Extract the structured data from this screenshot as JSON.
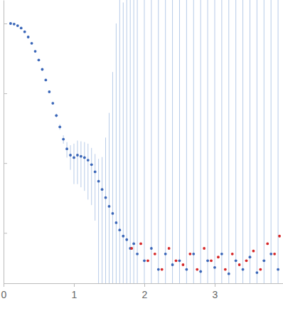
{
  "chart_data": {
    "type": "scatter",
    "log": "y",
    "tick_labels": "x",
    "xlim": [
      0,
      3.97
    ],
    "xticks": [
      0,
      1,
      2,
      3
    ],
    "ylim": [
      0.00019,
      2.17
    ],
    "yticks": [
      0.001,
      0.01,
      0.1,
      1
    ],
    "series": [
      {
        "color": "#3a66b8",
        "marker": "circle",
        "x": [
          0.1,
          0.15,
          0.2,
          0.25,
          0.3,
          0.35,
          0.4,
          0.45,
          0.5,
          0.55,
          0.6,
          0.65,
          0.7,
          0.75,
          0.8,
          0.85,
          0.9,
          0.95,
          1.0,
          1.05,
          1.1,
          1.15,
          1.2,
          1.25,
          1.3,
          1.35,
          1.4,
          1.45,
          1.5,
          1.55,
          1.6,
          1.65,
          1.7,
          1.75,
          1.8,
          1.85,
          1.9,
          2.0,
          2.1,
          2.2,
          2.3,
          2.4,
          2.5,
          2.6,
          2.7,
          2.8,
          2.9,
          3.0,
          3.1,
          3.2,
          3.3,
          3.4,
          3.5,
          3.6,
          3.7,
          3.8,
          3.9
        ],
        "values": [
          1.0,
          0.98,
          0.93,
          0.86,
          0.76,
          0.64,
          0.52,
          0.4,
          0.3,
          0.22,
          0.155,
          0.105,
          0.072,
          0.048,
          0.033,
          0.022,
          0.016,
          0.013,
          0.012,
          0.013,
          0.0125,
          0.012,
          0.011,
          0.0095,
          0.0075,
          0.0055,
          0.0042,
          0.0032,
          0.0024,
          0.0019,
          0.0014,
          0.0011,
          0.0009,
          0.0008,
          0.0006,
          0.0007,
          0.0005,
          0.0004,
          0.0006,
          0.0003,
          0.0005,
          0.00035,
          0.0004,
          0.0003,
          0.0005,
          0.00028,
          0.0004,
          0.00032,
          0.0005,
          0.00026,
          0.0004,
          0.0003,
          0.00045,
          0.00027,
          0.0004,
          0.0005,
          0.0003
        ],
        "errors": [
          0.005,
          0.005,
          0.005,
          0.005,
          0.005,
          0.005,
          0.004,
          0.004,
          0.004,
          0.004,
          0.003,
          0.003,
          0.003,
          0.003,
          0.003,
          0.003,
          0.004,
          0.005,
          0.007,
          0.008,
          0.008,
          0.008,
          0.008,
          0.007,
          0.006,
          0.006,
          0.008,
          0.02,
          0.05,
          0.2,
          1,
          3,
          2,
          5,
          8,
          3,
          10,
          6,
          9,
          4,
          12,
          7,
          10,
          5,
          8,
          11,
          6,
          9,
          7,
          10,
          4,
          8,
          12,
          6,
          9,
          11,
          7
        ]
      },
      {
        "color": "#d62728",
        "marker": "circle",
        "x": [
          1.82,
          1.95,
          2.05,
          2.15,
          2.25,
          2.35,
          2.45,
          2.55,
          2.65,
          2.75,
          2.85,
          2.95,
          3.05,
          3.15,
          3.25,
          3.35,
          3.45,
          3.55,
          3.65,
          3.75,
          3.85,
          3.92
        ],
        "values": [
          0.0006,
          0.0007,
          0.0004,
          0.0005,
          0.0003,
          0.0006,
          0.0004,
          0.00035,
          0.0005,
          0.0003,
          0.0006,
          0.0004,
          0.00045,
          0.0003,
          0.0005,
          0.00035,
          0.0004,
          0.00055,
          0.0003,
          0.0007,
          0.0005,
          0.0009
        ]
      }
    ]
  }
}
